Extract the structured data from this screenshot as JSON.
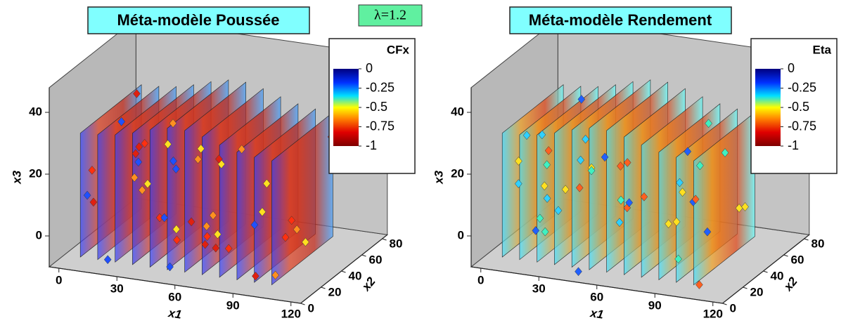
{
  "annotation": "λ=1.2",
  "chart_data": [
    {
      "type": "volume-slices",
      "title": "Méta-modèle Poussée",
      "x_label": "x1",
      "y_label": "x2",
      "z_label": "x3",
      "xlim": [
        -5,
        125
      ],
      "xticks": [
        0,
        30,
        60,
        90,
        120
      ],
      "ylim": [
        0,
        85
      ],
      "yticks": [
        0,
        20,
        40,
        60,
        80
      ],
      "zlim": [
        -10,
        48
      ],
      "zticks": [
        0,
        20,
        40
      ],
      "colorbar": {
        "title": "CFx",
        "lim": [
          -1,
          0
        ],
        "ticks": [
          0,
          -0.25,
          -0.5,
          -0.75,
          -1
        ]
      }
    },
    {
      "type": "volume-slices",
      "title": "Méta-modèle Rendement",
      "x_label": "x1",
      "y_label": "x2",
      "z_label": "x3",
      "xlim": [
        -5,
        125
      ],
      "xticks": [
        0,
        30,
        60,
        90,
        120
      ],
      "ylim": [
        0,
        85
      ],
      "yticks": [
        0,
        20,
        40,
        60,
        80
      ],
      "zlim": [
        -10,
        48
      ],
      "zticks": [
        0,
        20,
        40
      ],
      "colorbar": {
        "title": "Eta",
        "lim": [
          -1,
          0
        ],
        "ticks": [
          0,
          -0.25,
          -0.5,
          -0.75,
          -1
        ]
      }
    }
  ]
}
